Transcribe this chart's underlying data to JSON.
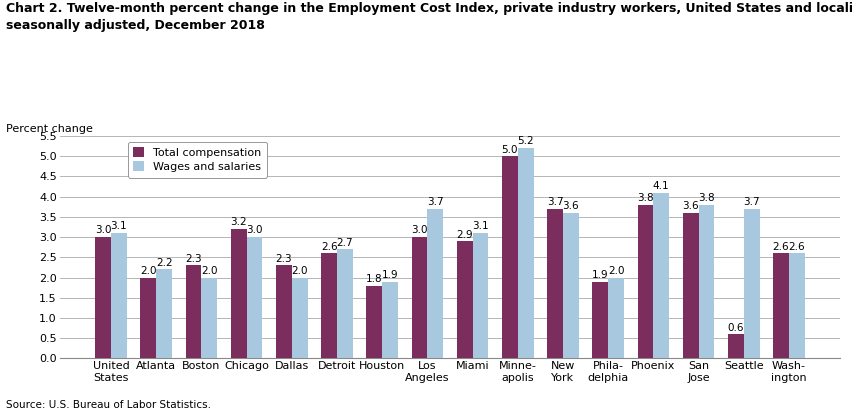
{
  "title_line1": "Chart 2. Twelve-month percent change in the Employment Cost Index, private industry workers, United States and localities, not",
  "title_line2": "seasonally adjusted, December 2018",
  "ylabel": "Percent change",
  "source": "Source: U.S. Bureau of Labor Statistics.",
  "categories": [
    "United\nStates",
    "Atlanta",
    "Boston",
    "Chicago",
    "Dallas",
    "Detroit",
    "Houston",
    "Los\nAngeles",
    "Miami",
    "Minne-\napolis",
    "New\nYork",
    "Phila-\ndelphia",
    "Phoenix",
    "San\nJose",
    "Seattle",
    "Wash-\nington"
  ],
  "total_compensation": [
    3.0,
    2.0,
    2.3,
    3.2,
    2.3,
    2.6,
    1.8,
    3.0,
    2.9,
    5.0,
    3.7,
    1.9,
    3.8,
    3.6,
    0.6,
    2.6
  ],
  "wages_salaries": [
    3.1,
    2.2,
    2.0,
    3.0,
    2.0,
    2.7,
    1.9,
    3.7,
    3.1,
    5.2,
    3.6,
    2.0,
    4.1,
    3.8,
    3.7,
    2.6
  ],
  "color_total": "#7B2D5E",
  "color_wages": "#A8C8E0",
  "ylim": [
    0,
    5.5
  ],
  "yticks": [
    0.0,
    0.5,
    1.0,
    1.5,
    2.0,
    2.5,
    3.0,
    3.5,
    4.0,
    4.5,
    5.0,
    5.5
  ],
  "legend_labels": [
    "Total compensation",
    "Wages and salaries"
  ],
  "bar_width": 0.35,
  "title_fontsize": 9,
  "label_fontsize": 8,
  "tick_fontsize": 8,
  "value_fontsize": 7.5
}
